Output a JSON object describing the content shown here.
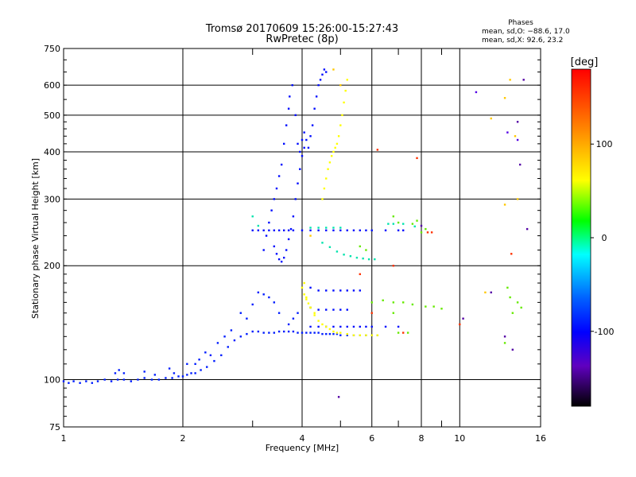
{
  "chart_data": {
    "type": "scatter",
    "title": "Tromsø 20170609 15:26:00-15:27:43",
    "subtitle": "RwPretec (8p)",
    "xlabel": "Frequency [MHz]",
    "ylabel": "Stationary phase Virtual Height [km]",
    "x_scale": "log",
    "y_scale": "log",
    "xlim": [
      1,
      16
    ],
    "ylim": [
      75,
      750
    ],
    "x_ticks": [
      1,
      2,
      4,
      6,
      8,
      10,
      16
    ],
    "y_ticks": [
      75,
      100,
      200,
      300,
      400,
      500,
      600,
      750
    ],
    "x_minor_ticks": [
      3,
      5,
      7,
      9
    ],
    "grid": true,
    "phases_box": {
      "title": "Phases",
      "line_o": "mean, sd,O: −88.6, 17.0",
      "line_x": "mean, sd,X:  92.6, 23.2"
    },
    "colorbar": {
      "label": "[deg]",
      "range": [
        -180,
        180
      ],
      "ticks": [
        100,
        0,
        -100
      ],
      "colors": [
        "#ff0000",
        "#ff8000",
        "#ffff00",
        "#00ff00",
        "#00ffff",
        "#0000ff",
        "#8000ff",
        "#000000"
      ]
    },
    "series": [
      {
        "phase_deg": -88,
        "points": [
          [
            1.0,
            99
          ],
          [
            1.03,
            98
          ],
          [
            1.06,
            99
          ],
          [
            1.1,
            98
          ],
          [
            1.14,
            99
          ],
          [
            1.18,
            98
          ],
          [
            1.22,
            99
          ],
          [
            1.27,
            100
          ],
          [
            1.32,
            99
          ],
          [
            1.37,
            100
          ],
          [
            1.42,
            100
          ],
          [
            1.48,
            99
          ],
          [
            1.54,
            100
          ],
          [
            1.6,
            101
          ],
          [
            1.67,
            100
          ],
          [
            1.74,
            100
          ],
          [
            1.81,
            101
          ],
          [
            1.88,
            101
          ],
          [
            1.95,
            102
          ],
          [
            2.0,
            102
          ],
          [
            2.05,
            103
          ],
          [
            2.1,
            104
          ],
          [
            2.15,
            104
          ],
          [
            2.22,
            106
          ],
          [
            2.3,
            108
          ],
          [
            2.4,
            112
          ],
          [
            2.5,
            116
          ],
          [
            2.6,
            122
          ],
          [
            2.7,
            127
          ],
          [
            2.8,
            130
          ],
          [
            2.9,
            132
          ],
          [
            3.0,
            134
          ],
          [
            3.1,
            134
          ],
          [
            3.2,
            133
          ],
          [
            3.3,
            133
          ],
          [
            3.4,
            133
          ],
          [
            3.5,
            134
          ],
          [
            3.6,
            134
          ],
          [
            3.7,
            134
          ],
          [
            3.8,
            134
          ],
          [
            3.9,
            133
          ],
          [
            4.0,
            133
          ],
          [
            4.1,
            133
          ],
          [
            4.2,
            133
          ],
          [
            4.3,
            133
          ],
          [
            4.4,
            133
          ],
          [
            4.5,
            132
          ],
          [
            4.6,
            132
          ],
          [
            4.7,
            132
          ],
          [
            4.8,
            132
          ],
          [
            4.9,
            132
          ],
          [
            5.0,
            131
          ],
          [
            5.2,
            131
          ],
          [
            5.4,
            131
          ],
          [
            5.6,
            131
          ],
          [
            5.8,
            131
          ],
          [
            6.0,
            131
          ],
          [
            6.2,
            131
          ],
          [
            1.35,
            104
          ],
          [
            1.38,
            106
          ],
          [
            1.42,
            104
          ],
          [
            1.6,
            105
          ],
          [
            1.7,
            103
          ],
          [
            1.85,
            107
          ],
          [
            1.9,
            104
          ],
          [
            2.05,
            110
          ],
          [
            2.15,
            110
          ],
          [
            2.2,
            113
          ],
          [
            2.28,
            118
          ],
          [
            2.35,
            116
          ],
          [
            2.45,
            125
          ],
          [
            2.55,
            130
          ],
          [
            2.65,
            135
          ],
          [
            2.8,
            150
          ],
          [
            2.9,
            145
          ],
          [
            3.0,
            158
          ],
          [
            3.1,
            170
          ],
          [
            3.2,
            168
          ],
          [
            3.3,
            165
          ],
          [
            3.4,
            160
          ],
          [
            3.5,
            150
          ],
          [
            3.7,
            140
          ],
          [
            3.8,
            145
          ],
          [
            3.9,
            150
          ]
        ]
      },
      {
        "phase_deg": -95,
        "points": [
          [
            3.2,
            220
          ],
          [
            3.25,
            240
          ],
          [
            3.3,
            260
          ],
          [
            3.35,
            280
          ],
          [
            3.4,
            300
          ],
          [
            3.45,
            320
          ],
          [
            3.5,
            345
          ],
          [
            3.55,
            370
          ],
          [
            3.6,
            420
          ],
          [
            3.65,
            470
          ],
          [
            3.7,
            520
          ],
          [
            3.72,
            560
          ],
          [
            3.78,
            600
          ],
          [
            3.85,
            500
          ],
          [
            3.9,
            420
          ],
          [
            3.95,
            400
          ],
          [
            4.0,
            430
          ],
          [
            4.05,
            450
          ],
          [
            4.1,
            430
          ],
          [
            4.15,
            410
          ],
          [
            4.2,
            440
          ],
          [
            4.25,
            470
          ],
          [
            4.3,
            520
          ],
          [
            4.35,
            560
          ],
          [
            4.4,
            600
          ],
          [
            4.45,
            620
          ],
          [
            4.5,
            640
          ],
          [
            4.55,
            660
          ],
          [
            4.6,
            650
          ],
          [
            3.4,
            225
          ],
          [
            3.45,
            215
          ],
          [
            3.5,
            208
          ],
          [
            3.55,
            205
          ],
          [
            3.6,
            210
          ],
          [
            3.65,
            220
          ],
          [
            3.7,
            235
          ],
          [
            3.75,
            250
          ],
          [
            3.8,
            270
          ],
          [
            3.85,
            300
          ],
          [
            3.9,
            330
          ],
          [
            3.95,
            360
          ],
          [
            4.0,
            390
          ],
          [
            4.05,
            410
          ],
          [
            3.0,
            248
          ],
          [
            3.1,
            248
          ],
          [
            3.2,
            248
          ],
          [
            3.3,
            248
          ],
          [
            3.4,
            248
          ],
          [
            3.5,
            248
          ],
          [
            3.6,
            248
          ],
          [
            3.7,
            248
          ],
          [
            3.8,
            248
          ],
          [
            4.0,
            248
          ],
          [
            4.2,
            248
          ],
          [
            4.4,
            248
          ],
          [
            4.6,
            248
          ],
          [
            4.8,
            248
          ],
          [
            5.0,
            248
          ],
          [
            5.2,
            248
          ],
          [
            5.4,
            248
          ],
          [
            5.6,
            248
          ],
          [
            5.8,
            248
          ],
          [
            6.0,
            248
          ],
          [
            6.5,
            248
          ],
          [
            7.0,
            248
          ],
          [
            7.2,
            248
          ],
          [
            4.2,
            175
          ],
          [
            4.4,
            172
          ],
          [
            4.6,
            172
          ],
          [
            4.8,
            172
          ],
          [
            5.0,
            172
          ],
          [
            5.2,
            172
          ],
          [
            5.4,
            172
          ],
          [
            5.6,
            172
          ],
          [
            4.2,
            155
          ],
          [
            4.4,
            153
          ],
          [
            4.6,
            153
          ],
          [
            4.8,
            153
          ],
          [
            5.0,
            153
          ],
          [
            5.2,
            153
          ],
          [
            4.2,
            138
          ],
          [
            4.4,
            138
          ],
          [
            4.6,
            138
          ],
          [
            4.8,
            138
          ],
          [
            5.0,
            138
          ],
          [
            5.2,
            138
          ],
          [
            5.4,
            138
          ],
          [
            5.6,
            138
          ],
          [
            5.8,
            138
          ],
          [
            6.0,
            138
          ],
          [
            6.5,
            138
          ],
          [
            7.0,
            138
          ]
        ]
      },
      {
        "phase_deg": 90,
        "points": [
          [
            4.5,
            300
          ],
          [
            4.55,
            320
          ],
          [
            4.6,
            340
          ],
          [
            4.65,
            360
          ],
          [
            4.7,
            375
          ],
          [
            4.75,
            390
          ],
          [
            4.8,
            400
          ],
          [
            4.85,
            410
          ],
          [
            4.9,
            420
          ],
          [
            4.95,
            440
          ],
          [
            5.0,
            470
          ],
          [
            5.05,
            500
          ],
          [
            5.1,
            540
          ],
          [
            5.15,
            580
          ],
          [
            5.2,
            620
          ],
          [
            4.05,
            180
          ],
          [
            4.1,
            165
          ],
          [
            4.2,
            155
          ],
          [
            4.3,
            148
          ],
          [
            4.4,
            143
          ],
          [
            4.5,
            140
          ],
          [
            4.6,
            138
          ],
          [
            4.7,
            136
          ],
          [
            4.8,
            134
          ],
          [
            4.9,
            133
          ],
          [
            5.0,
            133
          ],
          [
            5.2,
            132
          ],
          [
            5.4,
            131
          ],
          [
            5.6,
            131
          ],
          [
            5.8,
            131
          ],
          [
            6.0,
            131
          ],
          [
            6.2,
            131
          ],
          [
            4.0,
            175
          ],
          [
            4.05,
            168
          ],
          [
            4.1,
            163
          ],
          [
            4.15,
            159
          ],
          [
            4.2,
            155
          ],
          [
            4.3,
            150
          ]
        ]
      },
      {
        "phase_deg": 10,
        "points": [
          [
            4.5,
            230
          ],
          [
            4.7,
            224
          ],
          [
            4.9,
            218
          ],
          [
            5.1,
            214
          ],
          [
            5.3,
            212
          ],
          [
            5.5,
            210
          ],
          [
            5.7,
            209
          ],
          [
            5.9,
            208
          ],
          [
            6.1,
            208
          ],
          [
            3.0,
            270
          ],
          [
            3.1,
            255
          ],
          [
            4.2,
            252
          ],
          [
            4.4,
            252
          ],
          [
            4.6,
            252
          ],
          [
            4.8,
            252
          ],
          [
            5.0,
            252
          ],
          [
            6.6,
            258
          ],
          [
            6.8,
            258
          ],
          [
            7.2,
            258
          ],
          [
            7.7,
            254
          ]
        ]
      },
      {
        "phase_deg": 60,
        "points": [
          [
            6.8,
            270
          ],
          [
            7.0,
            260
          ],
          [
            7.6,
            258
          ],
          [
            7.8,
            263
          ],
          [
            8.0,
            245
          ],
          [
            8.2,
            250
          ],
          [
            6.0,
            160
          ],
          [
            6.4,
            162
          ],
          [
            6.8,
            160
          ],
          [
            7.2,
            160
          ],
          [
            7.6,
            158
          ],
          [
            8.2,
            156
          ],
          [
            8.6,
            156
          ],
          [
            9.0,
            154
          ],
          [
            13.0,
            125
          ],
          [
            13.2,
            175
          ],
          [
            13.4,
            165
          ],
          [
            13.6,
            150
          ],
          [
            14.0,
            160
          ],
          [
            14.3,
            155
          ],
          [
            7.0,
            133
          ],
          [
            7.4,
            133
          ],
          [
            6.8,
            150
          ],
          [
            5.6,
            225
          ],
          [
            5.8,
            220
          ]
        ]
      },
      {
        "phase_deg": 165,
        "points": [
          [
            6.2,
            405
          ],
          [
            7.8,
            385
          ],
          [
            8.3,
            245
          ],
          [
            8.5,
            245
          ],
          [
            10.0,
            140
          ],
          [
            6.8,
            200
          ],
          [
            5.6,
            190
          ],
          [
            6.0,
            150
          ],
          [
            13.5,
            215
          ],
          [
            7.2,
            133
          ]
        ]
      },
      {
        "phase_deg": 115,
        "points": [
          [
            13.0,
            555
          ],
          [
            13.4,
            620
          ],
          [
            13.8,
            440
          ],
          [
            14.0,
            300
          ],
          [
            13.0,
            290
          ],
          [
            4.8,
            660
          ],
          [
            5.0,
            600
          ],
          [
            4.2,
            240
          ],
          [
            12.0,
            490
          ],
          [
            11.6,
            170
          ]
        ]
      },
      {
        "phase_deg": -150,
        "points": [
          [
            14.0,
            480
          ],
          [
            14.2,
            370
          ],
          [
            14.5,
            620
          ],
          [
            14.8,
            250
          ],
          [
            13.0,
            130
          ],
          [
            13.6,
            120
          ],
          [
            4.95,
            90
          ],
          [
            8.0,
            255
          ],
          [
            10.2,
            145
          ],
          [
            12.0,
            170
          ]
        ]
      },
      {
        "phase_deg": -130,
        "points": [
          [
            11.0,
            575
          ],
          [
            14.0,
            430
          ],
          [
            13.2,
            450
          ]
        ]
      }
    ]
  }
}
